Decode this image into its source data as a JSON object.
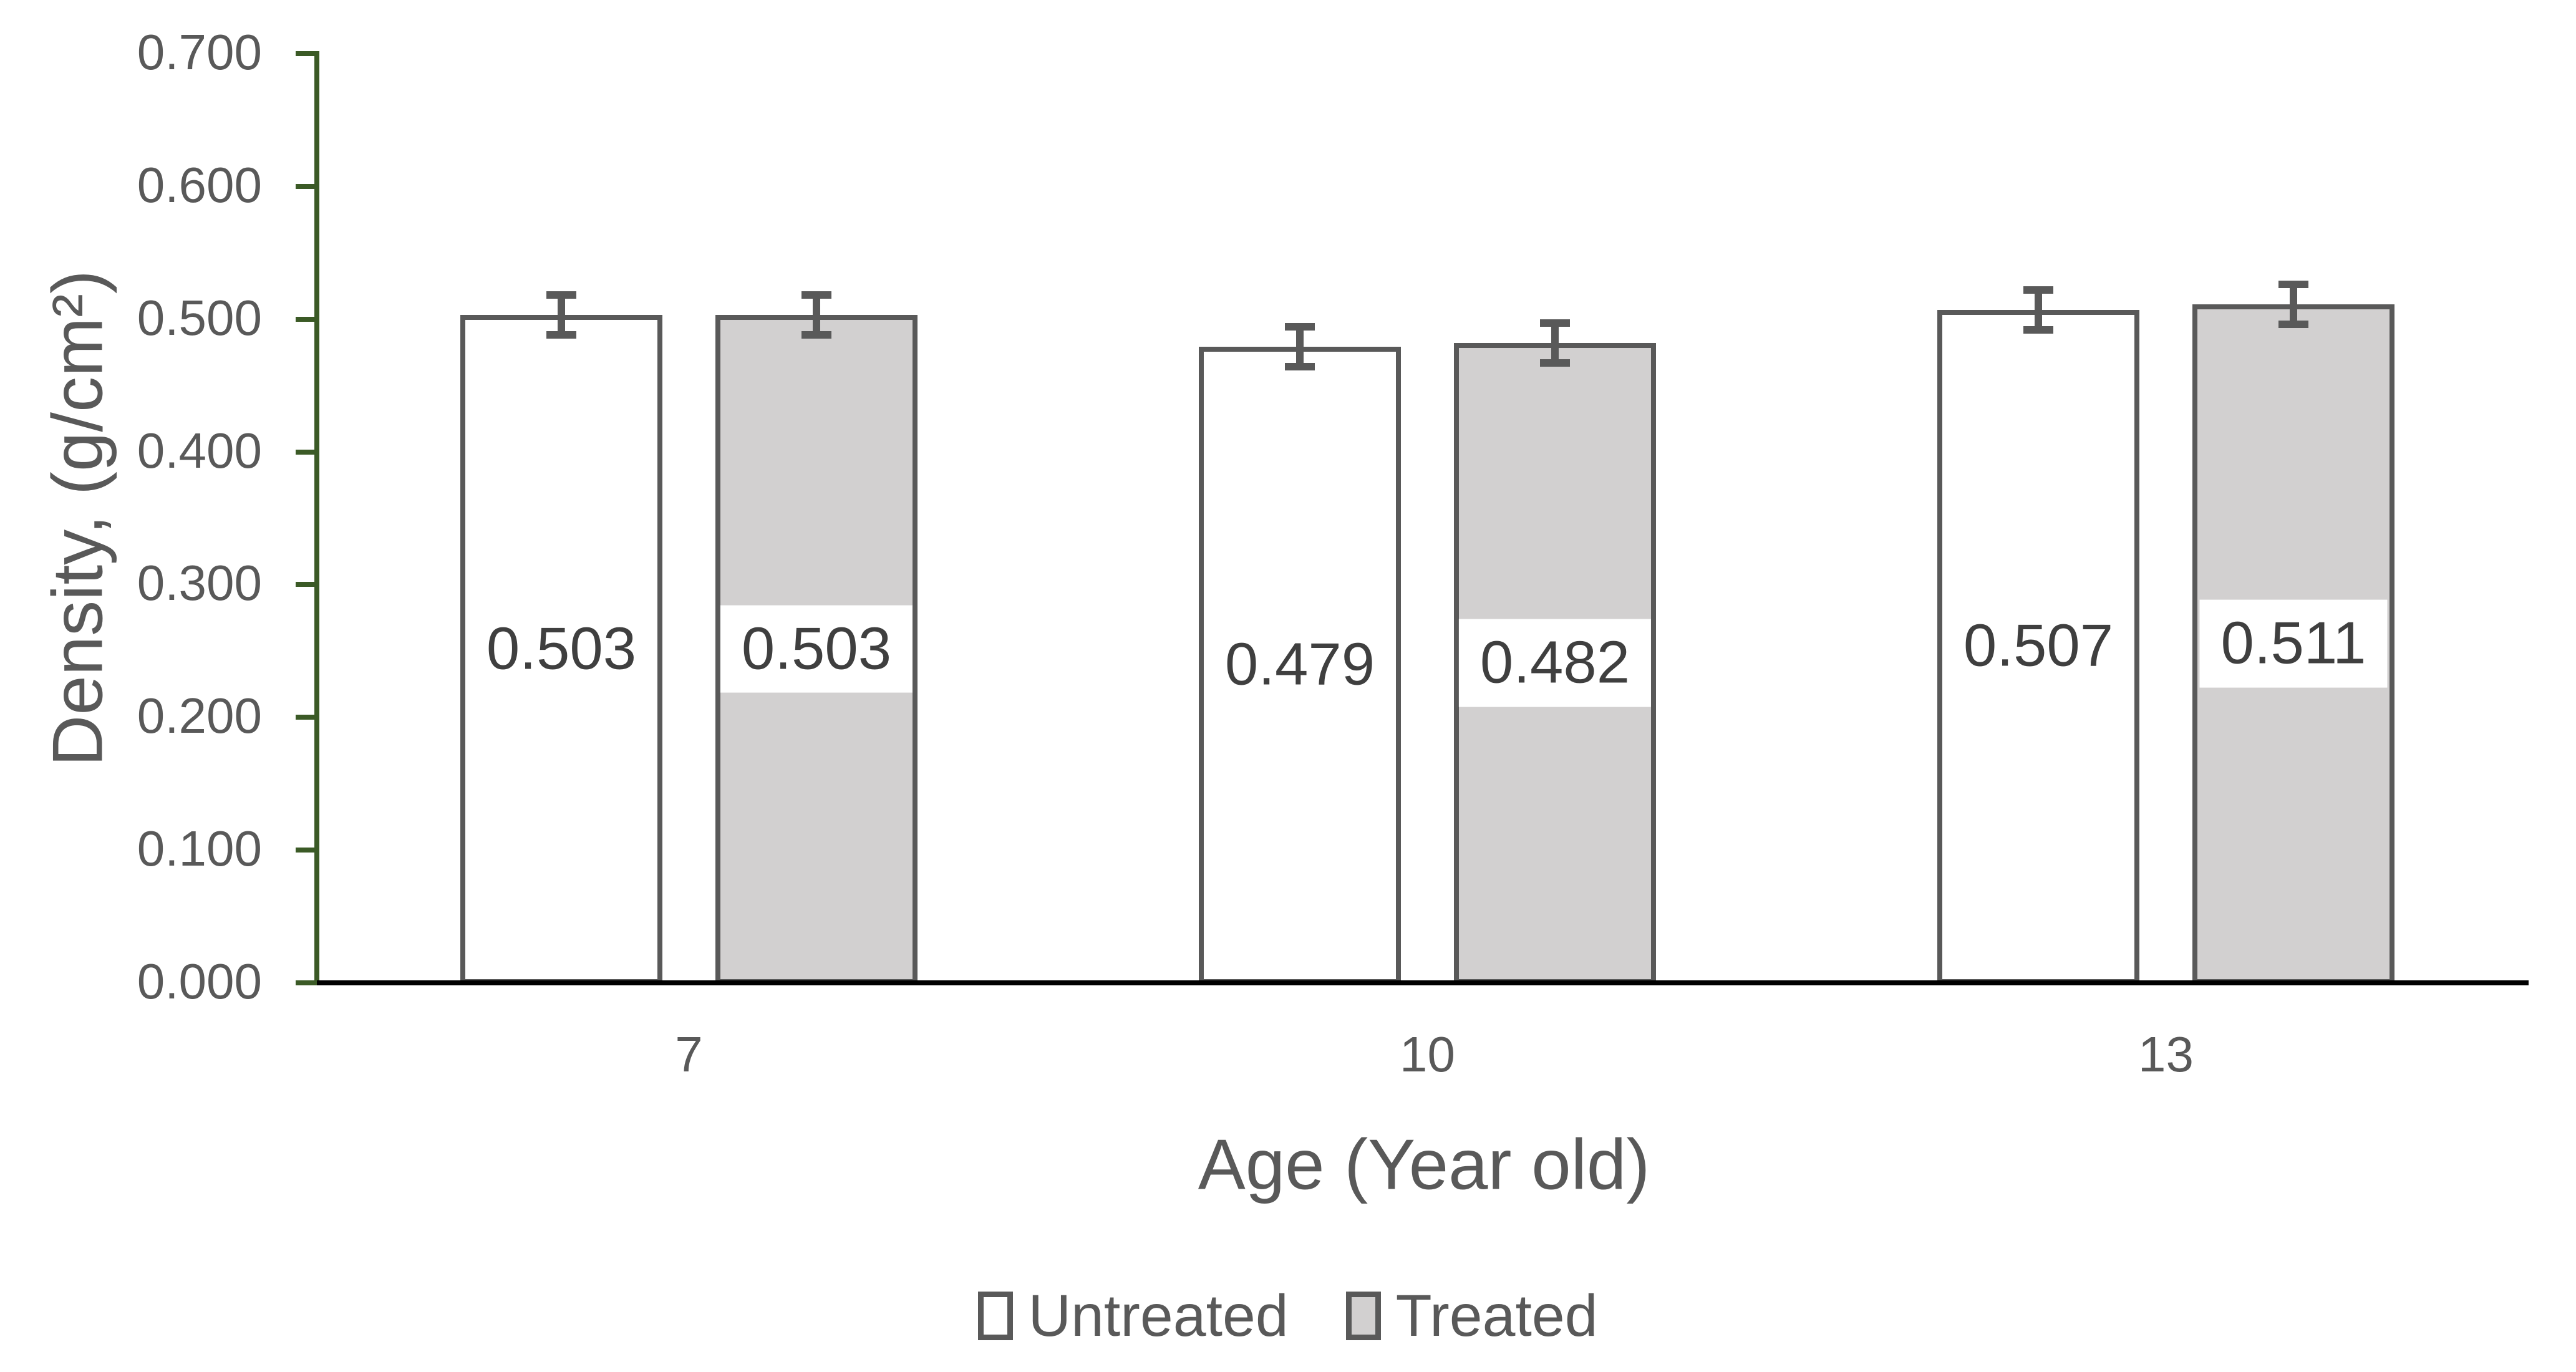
{
  "chart_data": {
    "type": "bar",
    "title": "",
    "xlabel": "Age (Year old)",
    "ylabel": "Density, (g/cm²)",
    "categories": [
      "7",
      "10",
      "13"
    ],
    "series": [
      {
        "name": "Untreated",
        "values": [
          0.503,
          0.479,
          0.507
        ],
        "labels": [
          "0.503",
          "0.479",
          "0.507"
        ],
        "errors": [
          0.015,
          0.015,
          0.015
        ],
        "fill": "#ffffff"
      },
      {
        "name": "Treated",
        "values": [
          0.503,
          0.482,
          0.511
        ],
        "labels": [
          "0.503",
          "0.482",
          "0.511"
        ],
        "errors": [
          0.015,
          0.015,
          0.015
        ],
        "fill": "#d2d0d0"
      }
    ],
    "ylim": [
      0.0,
      0.7
    ],
    "ytick_step": 0.1,
    "ytick_labels": [
      "0.000",
      "0.100",
      "0.200",
      "0.300",
      "0.400",
      "0.500",
      "0.600",
      "0.700"
    ],
    "grid": false,
    "legend_position": "bottom",
    "error_bar_style": "symmetric-with-caps",
    "colors": {
      "background": "#ffffff",
      "text": "#595959",
      "data_label_text": "#3f3f3f",
      "bar_border": "#595959",
      "untreated_fill": "#ffffff",
      "treated_fill": "#d2d0d0",
      "error_bar": "#595959",
      "y_axis_line": "#3b5a26",
      "x_axis_line": "#000000"
    }
  }
}
